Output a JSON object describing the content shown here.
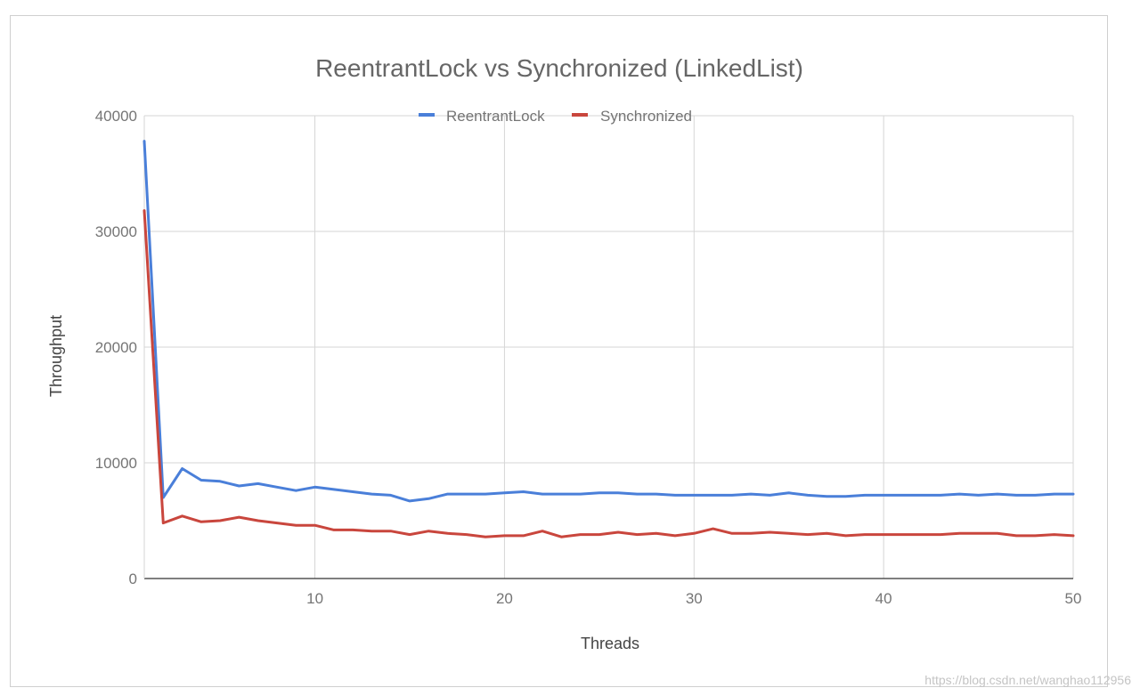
{
  "chart_data": {
    "type": "line",
    "title": "ReentrantLock vs Synchronized (LinkedList)",
    "xlabel": "Threads",
    "ylabel": "Throughput",
    "xlim": [
      1,
      50
    ],
    "ylim": [
      0,
      40000
    ],
    "x_ticks": [
      10,
      20,
      30,
      40,
      50
    ],
    "y_ticks": [
      0,
      10000,
      20000,
      30000,
      40000
    ],
    "grid": true,
    "legend_position": "top",
    "x": [
      1,
      2,
      3,
      4,
      5,
      6,
      7,
      8,
      9,
      10,
      11,
      12,
      13,
      14,
      15,
      16,
      17,
      18,
      19,
      20,
      21,
      22,
      23,
      24,
      25,
      26,
      27,
      28,
      29,
      30,
      31,
      32,
      33,
      34,
      35,
      36,
      37,
      38,
      39,
      40,
      41,
      42,
      43,
      44,
      45,
      46,
      47,
      48,
      49,
      50
    ],
    "series": [
      {
        "name": "ReentrantLock",
        "color": "#4a7fd9",
        "values": [
          37800,
          7000,
          9500,
          8500,
          8400,
          8000,
          8200,
          7900,
          7600,
          7900,
          7700,
          7500,
          7300,
          7200,
          6700,
          6900,
          7300,
          7300,
          7300,
          7400,
          7500,
          7300,
          7300,
          7300,
          7400,
          7400,
          7300,
          7300,
          7200,
          7200,
          7200,
          7200,
          7300,
          7200,
          7400,
          7200,
          7100,
          7100,
          7200,
          7200,
          7200,
          7200,
          7200,
          7300,
          7200,
          7300,
          7200,
          7200,
          7300,
          7300
        ]
      },
      {
        "name": "Synchronized",
        "color": "#c9463d",
        "values": [
          31800,
          4800,
          5400,
          4900,
          5000,
          5300,
          5000,
          4800,
          4600,
          4600,
          4200,
          4200,
          4100,
          4100,
          3800,
          4100,
          3900,
          3800,
          3600,
          3700,
          3700,
          4100,
          3600,
          3800,
          3800,
          4000,
          3800,
          3900,
          3700,
          3900,
          4300,
          3900,
          3900,
          4000,
          3900,
          3800,
          3900,
          3700,
          3800,
          3800,
          3800,
          3800,
          3800,
          3900,
          3900,
          3900,
          3700,
          3700,
          3800,
          3700
        ]
      }
    ]
  },
  "watermark": "https://blog.csdn.net/wanghao112956"
}
